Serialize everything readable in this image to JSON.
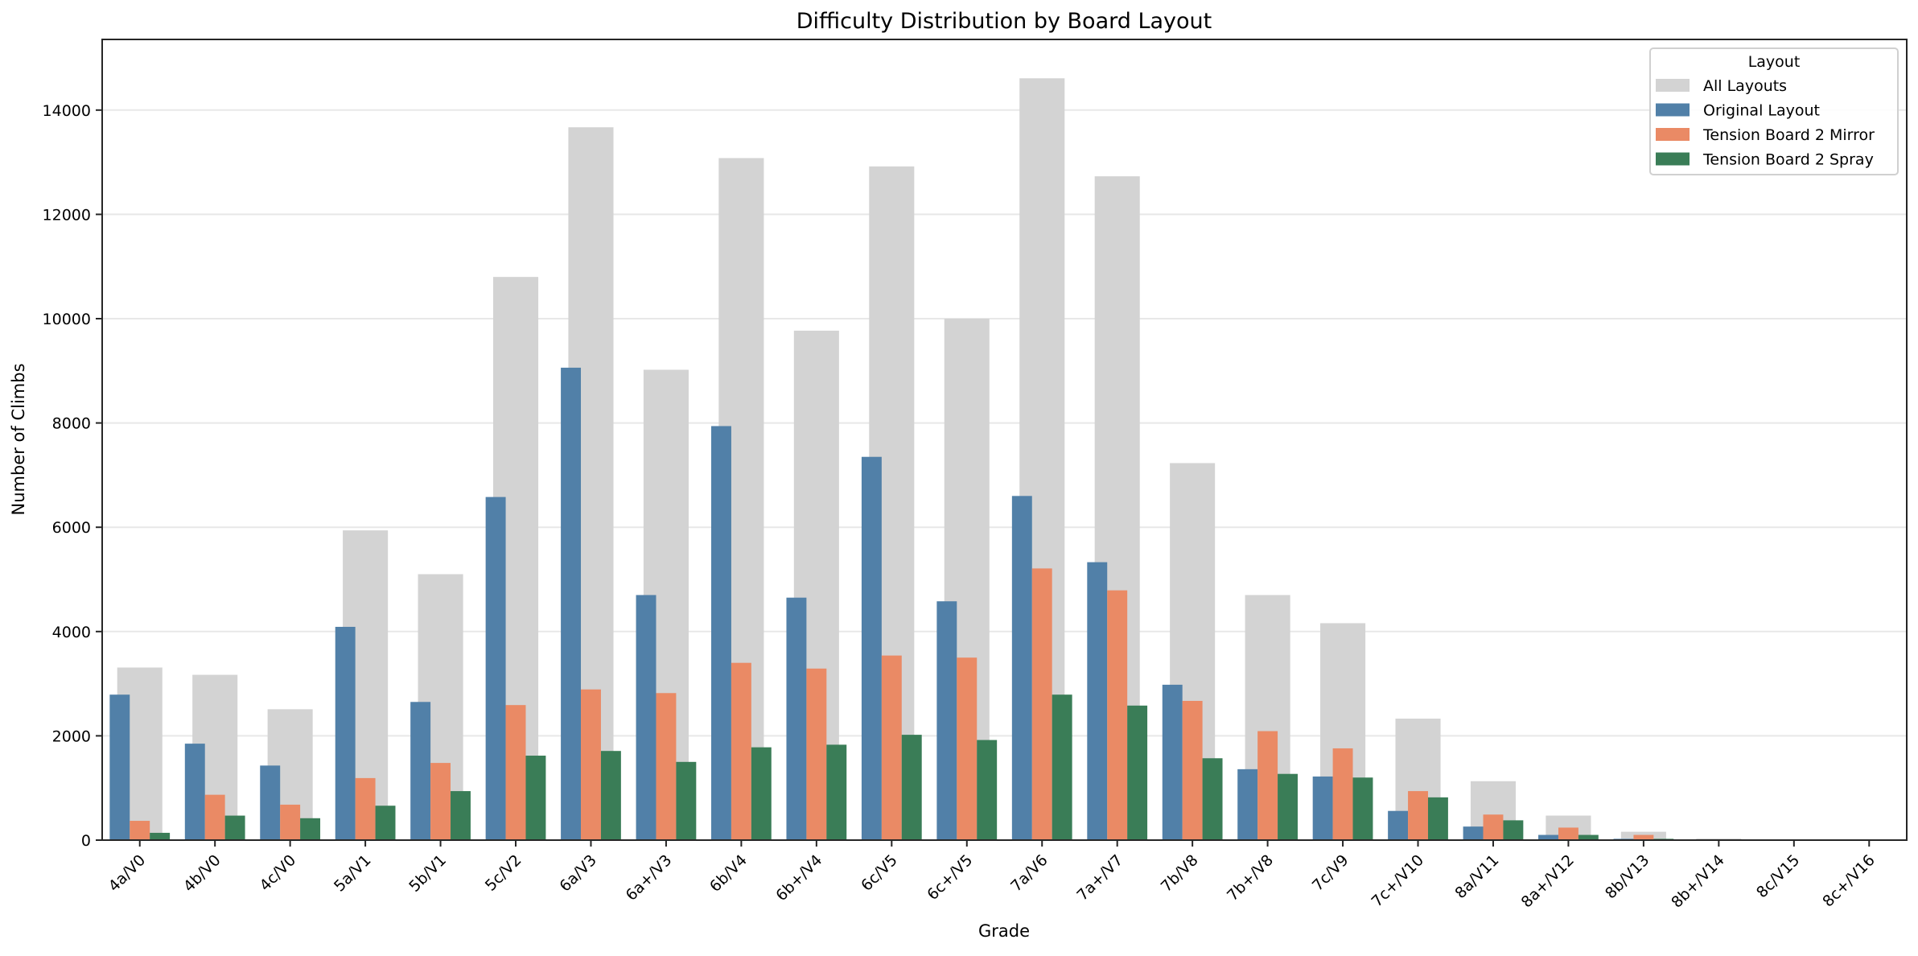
{
  "chart_data": {
    "type": "bar",
    "title": "Difficulty Distribution by Board Layout",
    "xlabel": "Grade",
    "ylabel": "Number of Climbs",
    "ylim": [
      0,
      15355
    ],
    "yticks": [
      0,
      2000,
      4000,
      6000,
      8000,
      10000,
      12000,
      14000
    ],
    "grid": "horizontal",
    "legend": {
      "title": "Layout",
      "placement": "top-right"
    },
    "categories": [
      "4a/V0",
      "4b/V0",
      "4c/V0",
      "5a/V1",
      "5b/V1",
      "5c/V2",
      "6a/V3",
      "6a+/V3",
      "6b/V4",
      "6b+/V4",
      "6c/V5",
      "6c+/V5",
      "7a/V6",
      "7a+/V7",
      "7b/V8",
      "7b+/V8",
      "7c/V9",
      "7c+/V10",
      "8a/V11",
      "8a+/V12",
      "8b/V13",
      "8b+/V14",
      "8c/V15",
      "8c+/V16"
    ],
    "series": [
      {
        "name": "All Layouts",
        "color": "#d3d3d3",
        "values": [
          3310,
          3170,
          2510,
          5940,
          5100,
          10800,
          13670,
          9020,
          13080,
          9770,
          12920,
          10000,
          14610,
          12730,
          7230,
          4700,
          4160,
          2330,
          1130,
          470,
          160,
          30,
          5,
          3
        ]
      },
      {
        "name": "Original Layout",
        "color": "#5180a8",
        "values": [
          2790,
          1850,
          1430,
          4090,
          2650,
          6580,
          9060,
          4700,
          7940,
          4650,
          7350,
          4580,
          6600,
          5330,
          2980,
          1360,
          1220,
          560,
          260,
          100,
          25,
          5,
          2,
          1
        ]
      },
      {
        "name": "Tension Board 2 Mirror",
        "color": "#ea8a65",
        "values": [
          370,
          870,
          680,
          1190,
          1480,
          2590,
          2890,
          2820,
          3400,
          3290,
          3540,
          3500,
          5210,
          4790,
          2670,
          2090,
          1760,
          940,
          490,
          240,
          100,
          10,
          2,
          1
        ]
      },
      {
        "name": "Tension Board 2 Spray",
        "color": "#3a7d57",
        "values": [
          140,
          470,
          420,
          660,
          940,
          1620,
          1710,
          1500,
          1780,
          1830,
          2020,
          1920,
          2790,
          2580,
          1570,
          1270,
          1200,
          820,
          380,
          100,
          25,
          5,
          1,
          1
        ]
      }
    ]
  }
}
